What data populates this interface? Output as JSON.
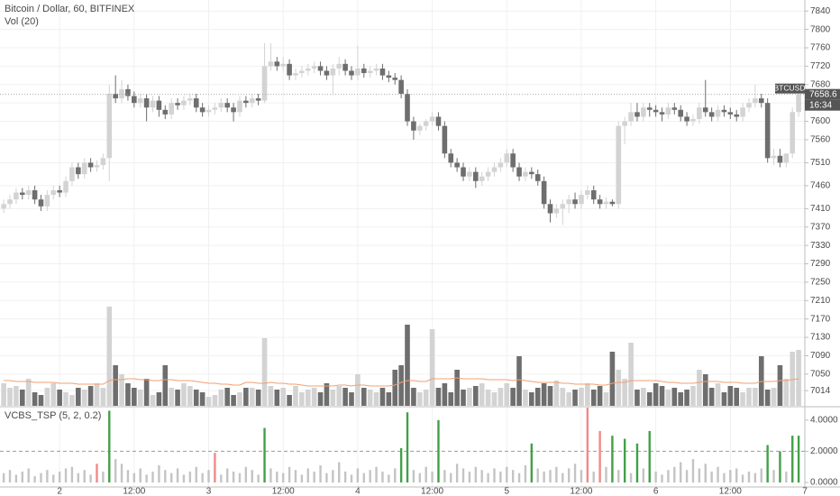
{
  "chart_data": [
    {
      "type": "candlestick",
      "title": "Bitcoin / Dollar, 60, BITFINEX",
      "subtitle": "Vol (20)",
      "symbol": "BTCUSD",
      "last_price": 7658.6,
      "last_time": "16:34",
      "up_color": "#d3d3d3",
      "down_color": "#6e6e6e",
      "ma_color": "#f0a070",
      "grid": true,
      "x": [
        0,
        1,
        2,
        3,
        4,
        5,
        6,
        7,
        8,
        9,
        10,
        11,
        12,
        13,
        14,
        15,
        16,
        17,
        18,
        19,
        20,
        21,
        22,
        23,
        24,
        25,
        26,
        27,
        28,
        29,
        30,
        31,
        32,
        33,
        34,
        35,
        36,
        37,
        38,
        39,
        40,
        41,
        42,
        43,
        44,
        45,
        46,
        47,
        48,
        49,
        50,
        51,
        52,
        53,
        54,
        55,
        56,
        57,
        58,
        59,
        60,
        61,
        62,
        63,
        64,
        65,
        66,
        67,
        68,
        69,
        70,
        71,
        72,
        73,
        74,
        75,
        76,
        77,
        78,
        79,
        80,
        81,
        82,
        83,
        84,
        85,
        86,
        87,
        88,
        89,
        90,
        91,
        92,
        93,
        94,
        95,
        96,
        97,
        98,
        99,
        100,
        101,
        102,
        103,
        104,
        105,
        106,
        107,
        108,
        109,
        110,
        111,
        112,
        113,
        114,
        115,
        116,
        117,
        118,
        119,
        120,
        121,
        122,
        123,
        124,
        125,
        126,
        127,
        128
      ],
      "open": [
        7410,
        7420,
        7430,
        7445,
        7440,
        7450,
        7430,
        7415,
        7440,
        7450,
        7445,
        7470,
        7500,
        7485,
        7510,
        7500,
        7505,
        7520,
        7660,
        7650,
        7670,
        7655,
        7640,
        7650,
        7630,
        7645,
        7625,
        7615,
        7640,
        7635,
        7645,
        7650,
        7630,
        7620,
        7625,
        7630,
        7640,
        7630,
        7620,
        7645,
        7640,
        7650,
        7645,
        7720,
        7730,
        7720,
        7725,
        7700,
        7705,
        7710,
        7715,
        7720,
        7710,
        7700,
        7715,
        7725,
        7710,
        7700,
        7715,
        7705,
        7710,
        7715,
        7700,
        7695,
        7690,
        7660,
        7600,
        7580,
        7590,
        7600,
        7610,
        7590,
        7530,
        7510,
        7500,
        7480,
        7490,
        7470,
        7480,
        7490,
        7500,
        7510,
        7530,
        7500,
        7480,
        7490,
        7485,
        7470,
        7420,
        7400,
        7410,
        7420,
        7430,
        7420,
        7440,
        7450,
        7430,
        7420,
        7425,
        7420,
        7590,
        7600,
        7620,
        7610,
        7630,
        7625,
        7620,
        7615,
        7630,
        7625,
        7610,
        7600,
        7605,
        7630,
        7620,
        7610,
        7625,
        7620,
        7615,
        7610,
        7630,
        7640,
        7650,
        7640,
        7520,
        7525,
        7510,
        7530,
        7620
      ],
      "high": [
        7430,
        7440,
        7455,
        7455,
        7460,
        7460,
        7440,
        7450,
        7460,
        7460,
        7480,
        7510,
        7510,
        7520,
        7520,
        7515,
        7530,
        7680,
        7700,
        7690,
        7680,
        7665,
        7660,
        7660,
        7655,
        7655,
        7635,
        7650,
        7650,
        7655,
        7660,
        7660,
        7640,
        7635,
        7640,
        7650,
        7650,
        7640,
        7655,
        7655,
        7660,
        7660,
        7770,
        7770,
        7740,
        7740,
        7735,
        7715,
        7720,
        7725,
        7730,
        7730,
        7720,
        7725,
        7740,
        7735,
        7720,
        7765,
        7725,
        7720,
        7725,
        7725,
        7710,
        7705,
        7700,
        7670,
        7610,
        7595,
        7605,
        7620,
        7620,
        7600,
        7540,
        7520,
        7510,
        7500,
        7500,
        7490,
        7500,
        7510,
        7520,
        7540,
        7540,
        7510,
        7500,
        7500,
        7495,
        7480,
        7430,
        7420,
        7430,
        7440,
        7445,
        7450,
        7460,
        7460,
        7440,
        7435,
        7430,
        7600,
        7610,
        7640,
        7640,
        7640,
        7640,
        7635,
        7630,
        7640,
        7640,
        7635,
        7620,
        7615,
        7640,
        7690,
        7630,
        7635,
        7635,
        7630,
        7625,
        7640,
        7650,
        7680,
        7660,
        7650,
        7540,
        7540,
        7525,
        7630,
        7680
      ],
      "low": [
        7400,
        7410,
        7420,
        7430,
        7430,
        7420,
        7405,
        7405,
        7430,
        7435,
        7435,
        7460,
        7475,
        7475,
        7490,
        7490,
        7495,
        7470,
        7640,
        7640,
        7645,
        7630,
        7630,
        7600,
        7620,
        7610,
        7605,
        7605,
        7625,
        7625,
        7635,
        7620,
        7610,
        7610,
        7615,
        7620,
        7620,
        7600,
        7610,
        7630,
        7630,
        7635,
        7640,
        7710,
        7710,
        7710,
        7690,
        7690,
        7695,
        7700,
        7705,
        7700,
        7690,
        7660,
        7700,
        7700,
        7690,
        7690,
        7695,
        7695,
        7700,
        7690,
        7685,
        7680,
        7650,
        7590,
        7560,
        7570,
        7580,
        7590,
        7580,
        7520,
        7500,
        7490,
        7470,
        7470,
        7455,
        7460,
        7470,
        7480,
        7490,
        7500,
        7490,
        7470,
        7470,
        7475,
        7460,
        7410,
        7380,
        7390,
        7375,
        7400,
        7410,
        7410,
        7430,
        7420,
        7410,
        7410,
        7415,
        7410,
        7550,
        7590,
        7600,
        7600,
        7610,
        7610,
        7600,
        7605,
        7615,
        7600,
        7590,
        7590,
        7595,
        7610,
        7600,
        7600,
        7610,
        7605,
        7600,
        7600,
        7620,
        7630,
        7630,
        7510,
        7505,
        7500,
        7500,
        7520,
        7610
      ],
      "close": [
        7420,
        7430,
        7445,
        7440,
        7450,
        7430,
        7415,
        7440,
        7450,
        7445,
        7470,
        7500,
        7485,
        7510,
        7500,
        7505,
        7520,
        7660,
        7650,
        7670,
        7655,
        7640,
        7650,
        7630,
        7645,
        7625,
        7615,
        7640,
        7635,
        7645,
        7650,
        7630,
        7620,
        7625,
        7630,
        7640,
        7630,
        7620,
        7645,
        7640,
        7650,
        7645,
        7720,
        7730,
        7720,
        7725,
        7700,
        7705,
        7710,
        7715,
        7720,
        7710,
        7700,
        7715,
        7725,
        7710,
        7700,
        7715,
        7705,
        7710,
        7715,
        7700,
        7695,
        7690,
        7660,
        7600,
        7580,
        7590,
        7600,
        7610,
        7590,
        7530,
        7510,
        7500,
        7480,
        7490,
        7470,
        7480,
        7490,
        7500,
        7510,
        7530,
        7500,
        7480,
        7490,
        7485,
        7470,
        7420,
        7400,
        7410,
        7420,
        7430,
        7420,
        7440,
        7450,
        7430,
        7420,
        7425,
        7420,
        7590,
        7600,
        7620,
        7610,
        7630,
        7625,
        7620,
        7615,
        7630,
        7625,
        7610,
        7600,
        7605,
        7630,
        7620,
        7610,
        7625,
        7620,
        7615,
        7610,
        7630,
        7640,
        7650,
        7640,
        7520,
        7525,
        7510,
        7530,
        7620,
        7658.6
      ],
      "volume": [
        25,
        20,
        22,
        18,
        30,
        15,
        12,
        20,
        25,
        18,
        15,
        12,
        20,
        18,
        22,
        25,
        20,
        110,
        45,
        35,
        25,
        20,
        18,
        30,
        12,
        15,
        45,
        20,
        18,
        25,
        22,
        18,
        15,
        10,
        12,
        18,
        20,
        12,
        15,
        20,
        20,
        18,
        75,
        22,
        18,
        20,
        12,
        22,
        15,
        18,
        20,
        15,
        25,
        18,
        22,
        20,
        15,
        35,
        20,
        18,
        15,
        20,
        15,
        40,
        45,
        90,
        20,
        15,
        18,
        85,
        20,
        25,
        15,
        40,
        18,
        20,
        22,
        25,
        18,
        15,
        20,
        25,
        20,
        55,
        18,
        15,
        20,
        25,
        22,
        28,
        20,
        15,
        18,
        20,
        25,
        18,
        22,
        15,
        60,
        40,
        30,
        70,
        18,
        20,
        15,
        25,
        22,
        18,
        20,
        15,
        18,
        22,
        40,
        35,
        20,
        25,
        15,
        22,
        20,
        15,
        20,
        20,
        55,
        18,
        20,
        45,
        30,
        60,
        62
      ],
      "volume_ma": [
        28,
        28,
        27,
        27,
        27,
        26,
        26,
        26,
        26,
        25,
        25,
        25,
        24,
        24,
        24,
        24,
        24,
        28,
        29,
        29,
        30,
        30,
        29,
        29,
        28,
        28,
        29,
        29,
        28,
        28,
        28,
        27,
        26,
        25,
        25,
        24,
        24,
        23,
        23,
        26,
        26,
        25,
        25,
        26,
        25,
        25,
        24,
        24,
        23,
        22,
        22,
        22,
        22,
        22,
        23,
        23,
        22,
        23,
        23,
        22,
        22,
        22,
        22,
        23,
        26,
        28,
        28,
        27,
        27,
        30,
        30,
        30,
        30,
        31,
        30,
        30,
        30,
        30,
        29,
        29,
        29,
        29,
        28,
        29,
        28,
        27,
        26,
        26,
        26,
        26,
        25,
        25,
        24,
        24,
        24,
        24,
        23,
        23,
        25,
        26,
        26,
        28,
        28,
        28,
        28,
        28,
        27,
        26,
        26,
        25,
        25,
        25,
        26,
        27,
        27,
        27,
        26,
        26,
        26,
        25,
        25,
        25,
        27,
        27,
        27,
        28,
        28,
        29,
        30
      ],
      "volume_ylim": [
        0,
        450
      ],
      "xlim": [
        -0.6,
        129
      ],
      "xticks": [
        {
          "value": 9,
          "label": "2"
        },
        {
          "value": 21,
          "label": "12:00"
        },
        {
          "value": 33,
          "label": "3"
        },
        {
          "value": 45,
          "label": "12:00"
        },
        {
          "value": 57,
          "label": "4"
        },
        {
          "value": 69,
          "label": "12:00"
        },
        {
          "value": 81,
          "label": "5"
        },
        {
          "value": 93,
          "label": "12:00"
        },
        {
          "value": 105,
          "label": "6"
        },
        {
          "value": 117,
          "label": "12:00"
        },
        {
          "value": 129,
          "label": "7"
        }
      ],
      "ylim": [
        6981,
        7864
      ],
      "yticks": [
        7840,
        7800,
        7760,
        7720,
        7680,
        7640,
        7600,
        7560,
        7510,
        7460,
        7410,
        7370,
        7330,
        7290,
        7250,
        7210,
        7170,
        7130,
        7090,
        7050,
        7014
      ]
    },
    {
      "type": "bar",
      "title": "VCBS_TSP (5, 2, 0.2)",
      "threshold": 2,
      "threshold_color": "#999999",
      "values": [
        0.6,
        0.8,
        0.5,
        0.7,
        0.9,
        0.4,
        0.6,
        0.8,
        0.5,
        0.7,
        0.9,
        1.0,
        0.6,
        0.8,
        0.5,
        1.2,
        0.7,
        4.6,
        1.5,
        1.2,
        0.8,
        0.6,
        0.9,
        0.5,
        0.7,
        1.1,
        0.8,
        0.6,
        0.9,
        0.5,
        0.7,
        1.0,
        0.6,
        0.8,
        1.9,
        0.5,
        0.9,
        0.7,
        0.6,
        1.0,
        0.8,
        0.5,
        3.5,
        0.9,
        0.7,
        0.6,
        1.0,
        0.8,
        0.5,
        0.9,
        0.7,
        1.1,
        0.6,
        0.8,
        1.3,
        0.7,
        0.5,
        0.9,
        0.6,
        0.8,
        1.0,
        0.7,
        0.5,
        0.9,
        2.2,
        4.5,
        0.8,
        0.6,
        1.0,
        0.7,
        4.0,
        0.8,
        0.6,
        1.2,
        0.9,
        0.7,
        1.0,
        0.8,
        0.6,
        0.9,
        0.7,
        1.0,
        0.8,
        0.6,
        1.1,
        2.5,
        0.9,
        0.7,
        0.8,
        1.0,
        0.6,
        0.9,
        1.2,
        0.8,
        4.8,
        0.7,
        3.3,
        1.0,
        3.0,
        0.8,
        2.8,
        0.6,
        2.5,
        0.9,
        3.3,
        0.7,
        0.5,
        0.8,
        1.0,
        1.3,
        0.8,
        1.5,
        0.9,
        1.2,
        0.7,
        1.0,
        0.6,
        0.8,
        0.9,
        0.5,
        0.7,
        0.6,
        0.9,
        2.4,
        0.8,
        2.0,
        0.7,
        3.0,
        3.0
      ],
      "colors": [
        "#c4c4c4",
        "#c4c4c4",
        "#c4c4c4",
        "#c4c4c4",
        "#c4c4c4",
        "#c4c4c4",
        "#c4c4c4",
        "#c4c4c4",
        "#c4c4c4",
        "#c4c4c4",
        "#c4c4c4",
        "#c4c4c4",
        "#c4c4c4",
        "#c4c4c4",
        "#c4c4c4",
        "#f08a8a",
        "#c4c4c4",
        "#43a047",
        "#c4c4c4",
        "#c4c4c4",
        "#c4c4c4",
        "#c4c4c4",
        "#c4c4c4",
        "#c4c4c4",
        "#c4c4c4",
        "#c4c4c4",
        "#c4c4c4",
        "#c4c4c4",
        "#c4c4c4",
        "#c4c4c4",
        "#c4c4c4",
        "#c4c4c4",
        "#c4c4c4",
        "#c4c4c4",
        "#f08a8a",
        "#c4c4c4",
        "#c4c4c4",
        "#c4c4c4",
        "#c4c4c4",
        "#c4c4c4",
        "#c4c4c4",
        "#c4c4c4",
        "#43a047",
        "#c4c4c4",
        "#c4c4c4",
        "#c4c4c4",
        "#c4c4c4",
        "#c4c4c4",
        "#c4c4c4",
        "#c4c4c4",
        "#c4c4c4",
        "#c4c4c4",
        "#c4c4c4",
        "#c4c4c4",
        "#c4c4c4",
        "#c4c4c4",
        "#c4c4c4",
        "#c4c4c4",
        "#c4c4c4",
        "#c4c4c4",
        "#c4c4c4",
        "#c4c4c4",
        "#c4c4c4",
        "#c4c4c4",
        "#43a047",
        "#43a047",
        "#c4c4c4",
        "#c4c4c4",
        "#c4c4c4",
        "#c4c4c4",
        "#43a047",
        "#c4c4c4",
        "#c4c4c4",
        "#c4c4c4",
        "#c4c4c4",
        "#c4c4c4",
        "#c4c4c4",
        "#c4c4c4",
        "#c4c4c4",
        "#c4c4c4",
        "#c4c4c4",
        "#c4c4c4",
        "#c4c4c4",
        "#c4c4c4",
        "#c4c4c4",
        "#43a047",
        "#c4c4c4",
        "#c4c4c4",
        "#c4c4c4",
        "#c4c4c4",
        "#c4c4c4",
        "#c4c4c4",
        "#c4c4c4",
        "#c4c4c4",
        "#f08a8a",
        "#c4c4c4",
        "#f08a8a",
        "#c4c4c4",
        "#43a047",
        "#c4c4c4",
        "#43a047",
        "#c4c4c4",
        "#43a047",
        "#c4c4c4",
        "#43a047",
        "#c4c4c4",
        "#c4c4c4",
        "#c4c4c4",
        "#c4c4c4",
        "#c4c4c4",
        "#c4c4c4",
        "#c4c4c4",
        "#c4c4c4",
        "#c4c4c4",
        "#c4c4c4",
        "#c4c4c4",
        "#c4c4c4",
        "#c4c4c4",
        "#c4c4c4",
        "#c4c4c4",
        "#c4c4c4",
        "#c4c4c4",
        "#c4c4c4",
        "#43a047",
        "#c4c4c4",
        "#43a047",
        "#c4c4c4",
        "#43a047",
        "#43a047"
      ],
      "ylim": [
        0,
        4.8
      ],
      "yticks": [
        {
          "value": 4,
          "label": "4.0000"
        },
        {
          "value": 2,
          "label": "2.0000"
        },
        {
          "value": 0,
          "label": "0.0000"
        }
      ]
    }
  ]
}
